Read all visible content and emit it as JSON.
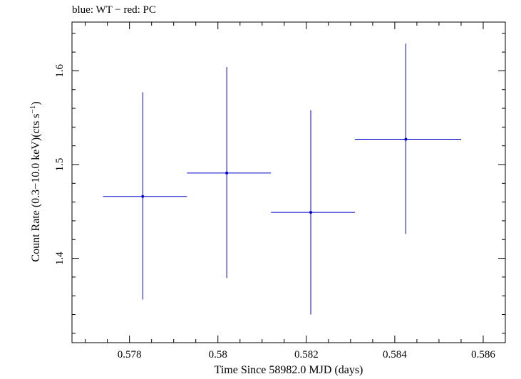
{
  "chart_data": {
    "type": "scatter",
    "title": "blue: WT − red: PC",
    "xlabel": "Time Since 58982.0 MJD (days)",
    "ylabel_main": "Count Rate (0.3−10.0 keV)(cts s",
    "ylabel_sup": "−1",
    "ylabel_end": ")",
    "xlim": [
      0.5767,
      0.5865
    ],
    "ylim": [
      1.31,
      1.652
    ],
    "xticks": [
      0.578,
      0.58,
      0.582,
      0.584,
      0.586
    ],
    "xtick_labels": [
      "0.578",
      "0.58",
      "0.582",
      "0.584",
      "0.586"
    ],
    "yticks": [
      1.4,
      1.5,
      1.6
    ],
    "ytick_labels": [
      "1.4",
      "1.5",
      "1.6"
    ],
    "grid": false,
    "series": [
      {
        "color": "#0000cc",
        "points": [
          {
            "x": 0.5783,
            "y": 1.466,
            "xlo": 0.5774,
            "xhi": 0.5793,
            "ylo": 1.356,
            "yhi": 1.577
          },
          {
            "x": 0.5802,
            "y": 1.491,
            "xlo": 0.5793,
            "xhi": 0.5812,
            "ylo": 1.379,
            "yhi": 1.604
          },
          {
            "x": 0.5821,
            "y": 1.449,
            "xlo": 0.5812,
            "xhi": 0.5831,
            "ylo": 1.34,
            "yhi": 1.558
          },
          {
            "x": 0.58425,
            "y": 1.527,
            "xlo": 0.5831,
            "xhi": 0.5855,
            "ylo": 1.426,
            "yhi": 1.629
          }
        ]
      }
    ]
  }
}
